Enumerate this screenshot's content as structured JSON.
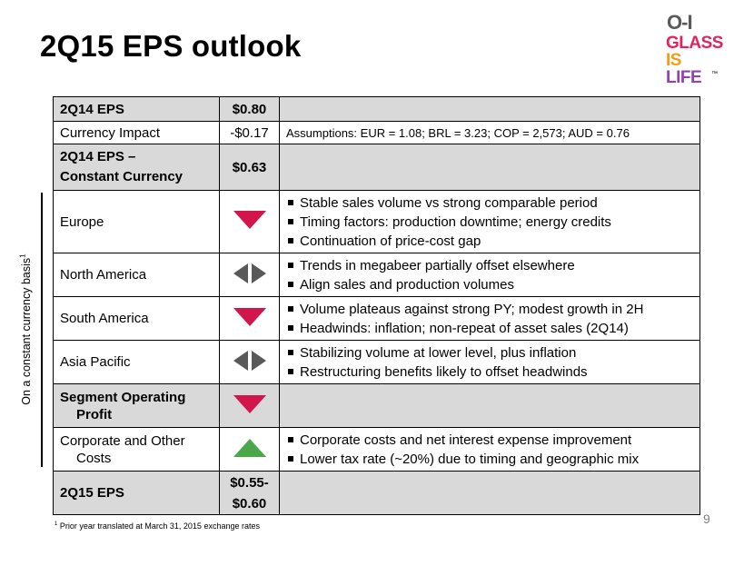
{
  "title": "2Q15 EPS outlook",
  "logo": {
    "mark": "O-I",
    "lines": [
      {
        "text": "GLASS",
        "color": "#e0245e"
      },
      {
        "text": "IS",
        "color": "#f39c12"
      },
      {
        "text": "LIFE",
        "color": "#8e44ad"
      }
    ],
    "tm": "™"
  },
  "side_label": "On a constant currency basis",
  "side_label_sup": "1",
  "rows": [
    {
      "label": "2Q14 EPS",
      "value": "$0.80",
      "detail": "",
      "style": "shade-bold"
    },
    {
      "label": "Currency Impact",
      "value": "-$0.17",
      "detail": "Assumptions:  EUR = 1.08; BRL = 3.23; COP = 2,573; AUD = 0.76",
      "style": "plain"
    },
    {
      "label_line1": "2Q14 EPS –",
      "label_line2": "Constant Currency",
      "value": "$0.63",
      "detail": "",
      "style": "shade-bold"
    },
    {
      "label": "Europe",
      "indicator": "down",
      "bullets": [
        "Stable sales volume vs strong comparable period",
        "Timing factors: production downtime; energy credits",
        "Continuation of price-cost gap"
      ]
    },
    {
      "label": "North America",
      "indicator": "flat",
      "bullets": [
        "Trends in megabeer partially offset elsewhere",
        "Align sales and production volumes"
      ]
    },
    {
      "label": "South America",
      "indicator": "down",
      "bullets": [
        "Volume plateaus against strong PY; modest growth in 2H",
        "Headwinds: inflation; non-repeat of asset sales (2Q14)"
      ]
    },
    {
      "label": "Asia Pacific",
      "indicator": "flat",
      "bullets": [
        "Stabilizing volume at lower level, plus inflation",
        "Restructuring benefits likely to offset headwinds"
      ]
    },
    {
      "label_line1": "Segment Operating",
      "label_line2": "Profit",
      "indicator": "down",
      "style": "shade-bold"
    },
    {
      "label_line1": "Corporate and Other",
      "label_line2": "Costs",
      "indicator": "up",
      "bullets": [
        "Corporate costs and net interest expense improvement",
        "Lower tax rate (~20%) due to timing and geographic mix"
      ]
    },
    {
      "label": "2Q15 EPS",
      "value_line1": "$0.55-",
      "value_line2": "$0.60",
      "detail": "",
      "style": "shade-bold"
    }
  ],
  "footnote_sup": "1",
  "footnote": "Prior year translated at March 31, 2015 exchange rates",
  "page_number": "9",
  "colors": {
    "down_arrow": "#d2164b",
    "up_arrow": "#4aa84a",
    "flat_arrows": "#595959",
    "shade": "#d9d9d9"
  }
}
